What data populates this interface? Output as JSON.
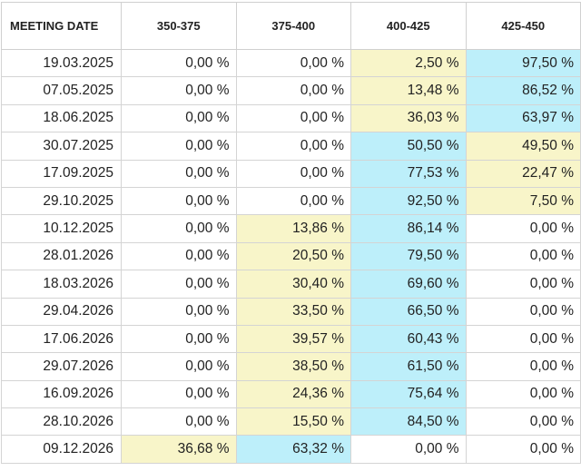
{
  "table": {
    "header": [
      "MEETING DATE",
      "350-375",
      "375-400",
      "400-425",
      "425-450"
    ],
    "palette": {
      "y": "#f8f5c9",
      "b": "#bdeffa"
    },
    "rows": [
      [
        "19.03.2025",
        "0,00 %",
        "0,00 %",
        "2,50 %",
        "97,50 %"
      ],
      [
        "07.05.2025",
        "0,00 %",
        "0,00 %",
        "13,48 %",
        "86,52 %"
      ],
      [
        "18.06.2025",
        "0,00 %",
        "0,00 %",
        "36,03 %",
        "63,97 %"
      ],
      [
        "30.07.2025",
        "0,00 %",
        "0,00 %",
        "50,50 %",
        "49,50 %"
      ],
      [
        "17.09.2025",
        "0,00 %",
        "0,00 %",
        "77,53 %",
        "22,47 %"
      ],
      [
        "29.10.2025",
        "0,00 %",
        "0,00 %",
        "92,50 %",
        "7,50 %"
      ],
      [
        "10.12.2025",
        "0,00 %",
        "13,86 %",
        "86,14 %",
        "0,00 %"
      ],
      [
        "28.01.2026",
        "0,00 %",
        "20,50 %",
        "79,50 %",
        "0,00 %"
      ],
      [
        "18.03.2026",
        "0,00 %",
        "30,40 %",
        "69,60 %",
        "0,00 %"
      ],
      [
        "29.04.2026",
        "0,00 %",
        "33,50 %",
        "66,50 %",
        "0,00 %"
      ],
      [
        "17.06.2026",
        "0,00 %",
        "39,57 %",
        "60,43 %",
        "0,00 %"
      ],
      [
        "29.07.2026",
        "0,00 %",
        "38,50 %",
        "61,50 %",
        "0,00 %"
      ],
      [
        "16.09.2026",
        "0,00 %",
        "24,36 %",
        "75,64 %",
        "0,00 %"
      ],
      [
        "28.10.2026",
        "0,00 %",
        "15,50 %",
        "84,50 %",
        "0,00 %"
      ],
      [
        "09.12.2026",
        "36,68 %",
        "63,32 %",
        "0,00 %",
        "0,00 %"
      ]
    ],
    "fills": [
      [
        null,
        null,
        null,
        "y",
        "b"
      ],
      [
        null,
        null,
        null,
        "y",
        "b"
      ],
      [
        null,
        null,
        null,
        "y",
        "b"
      ],
      [
        null,
        null,
        null,
        "b",
        "y"
      ],
      [
        null,
        null,
        null,
        "b",
        "y"
      ],
      [
        null,
        null,
        null,
        "b",
        "y"
      ],
      [
        null,
        null,
        "y",
        "b",
        null
      ],
      [
        null,
        null,
        "y",
        "b",
        null
      ],
      [
        null,
        null,
        "y",
        "b",
        null
      ],
      [
        null,
        null,
        "y",
        "b",
        null
      ],
      [
        null,
        null,
        "y",
        "b",
        null
      ],
      [
        null,
        null,
        "y",
        "b",
        null
      ],
      [
        null,
        null,
        "y",
        "b",
        null
      ],
      [
        null,
        null,
        "y",
        "b",
        null
      ],
      [
        null,
        "y",
        "b",
        null,
        null
      ]
    ]
  }
}
